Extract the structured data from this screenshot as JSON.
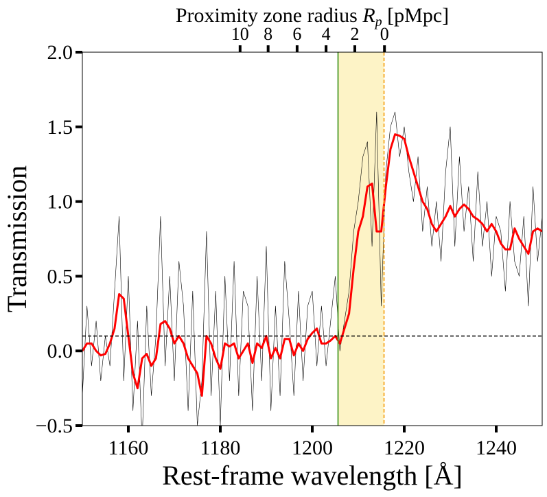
{
  "chart_data": {
    "type": "line",
    "xlabel": "Rest-frame wavelength [Å]",
    "ylabel": "Transmission",
    "x2label": {
      "text": "Proximity zone radius",
      "symbol": "R",
      "subscript": "p",
      "unit": "[pMpc]"
    },
    "x": [
      1150,
      1151,
      1152,
      1153,
      1154,
      1155,
      1156,
      1157,
      1158,
      1159,
      1160,
      1161,
      1162,
      1163,
      1164,
      1165,
      1166,
      1167,
      1168,
      1169,
      1170,
      1171,
      1172,
      1173,
      1174,
      1175,
      1176,
      1177,
      1178,
      1179,
      1180,
      1181,
      1182,
      1183,
      1184,
      1185,
      1186,
      1187,
      1188,
      1189,
      1190,
      1191,
      1192,
      1193,
      1194,
      1195,
      1196,
      1197,
      1198,
      1199,
      1200,
      1201,
      1202,
      1203,
      1204,
      1205,
      1206,
      1207,
      1208,
      1209,
      1210,
      1211,
      1212,
      1213,
      1214,
      1215,
      1216,
      1217,
      1218,
      1219,
      1220,
      1221,
      1222,
      1223,
      1224,
      1225,
      1226,
      1227,
      1228,
      1229,
      1230,
      1231,
      1232,
      1233,
      1234,
      1235,
      1236,
      1237,
      1238,
      1239,
      1240,
      1241,
      1242,
      1243,
      1244,
      1245,
      1246,
      1247,
      1248,
      1249,
      1250
    ],
    "series": [
      {
        "name": "flux",
        "color": "#000000",
        "width": 0.6,
        "values": [
          -0.3,
          0.3,
          -0.1,
          0.2,
          -0.2,
          0.1,
          -0.1,
          0.4,
          0.9,
          -0.2,
          0.5,
          -0.4,
          0.2,
          -0.6,
          0.3,
          -0.3,
          0.1,
          0.9,
          -0.1,
          0.5,
          -0.2,
          0.6,
          0.3,
          -0.4,
          0.4,
          -0.5,
          -0.2,
          0.8,
          -0.3,
          0.4,
          -0.5,
          0.5,
          -0.2,
          0.6,
          -0.3,
          0.4,
          0.3,
          -0.4,
          0.5,
          -0.2,
          0.7,
          -0.4,
          0.3,
          -0.3,
          0.6,
          0.2,
          -0.3,
          0.4,
          -0.2,
          0.3,
          0.4,
          -0.1,
          0.3,
          -0.1,
          0.2,
          0.5,
          0.0,
          0.2,
          0.4,
          0.8,
          1.0,
          1.3,
          1.4,
          0.7,
          1.6,
          0.3,
          1.2,
          1.5,
          1.6,
          1.3,
          1.5,
          1.2,
          1.0,
          1.3,
          0.8,
          1.1,
          0.7,
          1.0,
          0.6,
          1.2,
          1.5,
          0.7,
          1.3,
          0.8,
          1.1,
          0.6,
          1.2,
          0.7,
          1.0,
          0.5,
          0.9,
          0.8,
          0.4,
          1.0,
          0.6,
          0.5,
          0.9,
          0.3,
          1.1,
          0.6,
          0.9
        ]
      },
      {
        "name": "smoothed",
        "color": "#ff0000",
        "width": 3,
        "values": [
          0.0,
          0.05,
          0.05,
          0.0,
          -0.03,
          -0.02,
          0.05,
          0.15,
          0.38,
          0.35,
          0.1,
          -0.15,
          -0.25,
          -0.05,
          -0.02,
          -0.1,
          -0.05,
          0.18,
          0.2,
          0.15,
          0.05,
          0.1,
          0.05,
          -0.05,
          -0.1,
          -0.15,
          -0.3,
          0.1,
          0.05,
          -0.05,
          -0.12,
          0.05,
          0.03,
          0.05,
          -0.05,
          0.0,
          0.05,
          -0.08,
          0.05,
          0.02,
          0.1,
          -0.05,
          0.02,
          -0.05,
          0.08,
          0.08,
          -0.03,
          0.05,
          0.0,
          0.08,
          0.12,
          0.15,
          0.05,
          0.05,
          0.07,
          0.1,
          0.05,
          0.15,
          0.25,
          0.55,
          0.8,
          0.9,
          1.1,
          1.12,
          0.8,
          0.8,
          1.1,
          1.35,
          1.45,
          1.44,
          1.42,
          1.3,
          1.2,
          1.1,
          1.0,
          0.95,
          0.85,
          0.8,
          0.85,
          0.9,
          0.97,
          0.9,
          0.95,
          0.98,
          0.95,
          0.9,
          0.88,
          0.85,
          0.8,
          0.85,
          0.8,
          0.72,
          0.68,
          0.68,
          0.82,
          0.75,
          0.7,
          0.65,
          0.8,
          0.82,
          0.8
        ]
      }
    ],
    "xlim": [
      1150,
      1250
    ],
    "ylim": [
      -0.5,
      2.0
    ],
    "xticks": [
      1160,
      1180,
      1200,
      1220,
      1240
    ],
    "yticks": [
      {
        "value": 2.0,
        "label": "2.0"
      },
      {
        "value": 1.5,
        "label": "1.5"
      },
      {
        "value": 1.0,
        "label": "1.0"
      },
      {
        "value": 0.5,
        "label": "0.5"
      },
      {
        "value": 0.0,
        "label": "0.0"
      },
      {
        "value": -0.5,
        "label": "−0.5"
      }
    ],
    "x2ticks": [
      {
        "value": 10,
        "x": 1184.3
      },
      {
        "value": 8,
        "x": 1190.4
      },
      {
        "value": 6,
        "x": 1196.7
      },
      {
        "value": 4,
        "x": 1203.0
      },
      {
        "value": 2,
        "x": 1209.25
      },
      {
        "value": 0,
        "x": 1215.7
      }
    ],
    "hline": {
      "y": 0.1,
      "color": "#000000",
      "dash": true
    },
    "vlines": [
      {
        "x": 1205.6,
        "color": "#4a9a2a",
        "dash": false
      },
      {
        "x": 1215.6,
        "color": "#f5a623",
        "dash": true
      }
    ],
    "span": {
      "x": [
        1205.6,
        1215.6
      ],
      "color": "#fdf3c6"
    }
  }
}
